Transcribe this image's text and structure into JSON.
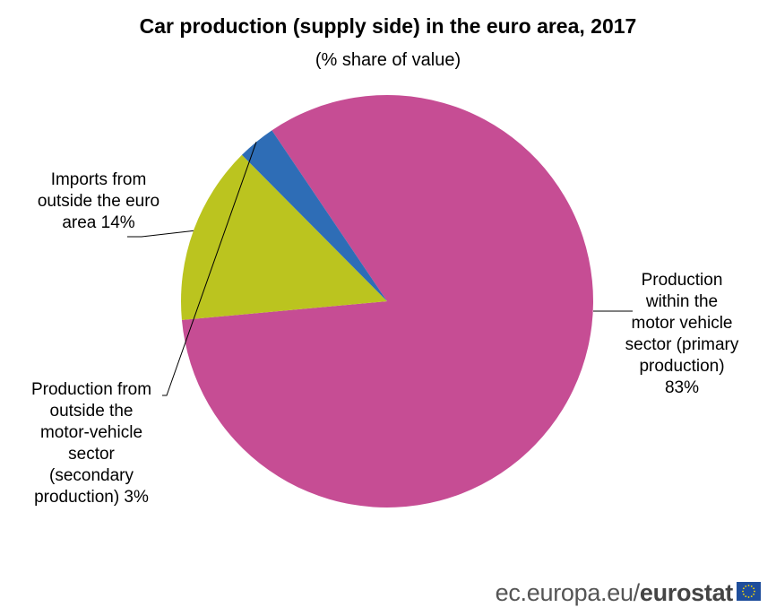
{
  "title": "Car production (supply side) in the euro area, 2017",
  "subtitle": "(% share of value)",
  "chart_data": {
    "type": "pie",
    "title": "Car production (supply side) in the euro area, 2017",
    "subtitle": "(% share of value)",
    "slices": [
      {
        "label": "Production within the motor vehicle sector (primary production)",
        "value": 83,
        "value_label": "83%",
        "color": "#c64d94",
        "label_lines": [
          "Production",
          "within the",
          "motor vehicle",
          "sector (primary",
          "production)",
          "83%"
        ]
      },
      {
        "label": "Imports from outside the euro area",
        "value": 14,
        "value_label": "14%",
        "color": "#bbc41f",
        "label_lines": [
          "Imports from",
          "outside the euro",
          "area  14%"
        ]
      },
      {
        "label": "Production from outside the motor-vehicle sector (secondary production)",
        "value": 3,
        "value_label": "3%",
        "color": "#2e6db6",
        "label_lines": [
          "Production from",
          "outside the",
          "motor-vehicle",
          "sector",
          "(secondary",
          "production)  3%"
        ]
      }
    ]
  },
  "footer": {
    "source": "ec.europa.eu/",
    "brand": "eurostat"
  },
  "colors": {
    "flag": "#1f4e9c",
    "flag_stars": "#ffdd00"
  }
}
